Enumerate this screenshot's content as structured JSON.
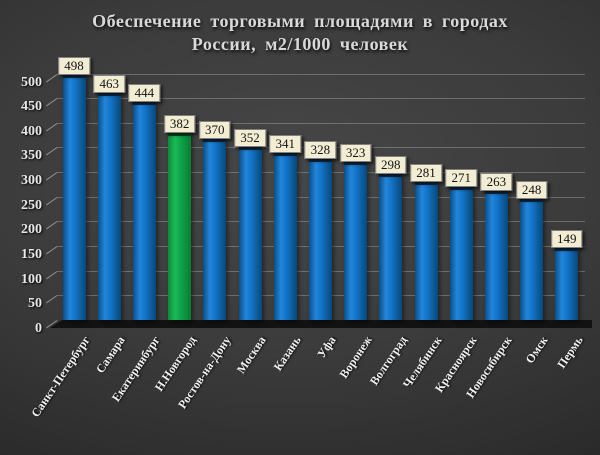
{
  "title": {
    "line1": "Обеспечение торговыми  площадями  в городах",
    "line2": "России, м2/1000 человек"
  },
  "chart_data": {
    "type": "bar",
    "title": "Обеспечение торговыми площадями в городах России, м2/1000 человек",
    "categories": [
      "Санкт-Петербург",
      "Самара",
      "Екатеринбург",
      "Н.Новгород",
      "Ростов-на-Дону",
      "Москва",
      "Казань",
      "Уфа",
      "Воронеж",
      "Волгоград",
      "Челябинск",
      "Красноярск",
      "Новосибирск",
      "Омск",
      "Пермь"
    ],
    "values": [
      498,
      463,
      444,
      382,
      370,
      352,
      341,
      328,
      323,
      298,
      281,
      271,
      263,
      248,
      149
    ],
    "highlight_index": 3,
    "highlight_category": "Н.Новгород",
    "xlabel": "",
    "ylabel": "",
    "ylim": [
      0,
      500
    ],
    "ytick_step": 50,
    "yticks": [
      0,
      50,
      100,
      150,
      200,
      250,
      300,
      350,
      400,
      450,
      500
    ],
    "grid": true,
    "legend": "none",
    "colors": {
      "bar_gradient": [
        "#0B4F88",
        "#2286DC",
        "#1373C6",
        "#094779"
      ],
      "bar_cap": "#0D2B49",
      "highlight_gradient": [
        "#0E8A38",
        "#1CB958",
        "#0EA44A",
        "#0A7C33"
      ],
      "highlight_cap": "#0A4A1C",
      "value_label_bg": "#F2EDD3",
      "value_label_border": "#808080",
      "title_color": "#D9D9D9",
      "axis_label_color": "#E8E8E8",
      "background_center": "#474747",
      "background_edge": "#1A1A1A"
    }
  }
}
